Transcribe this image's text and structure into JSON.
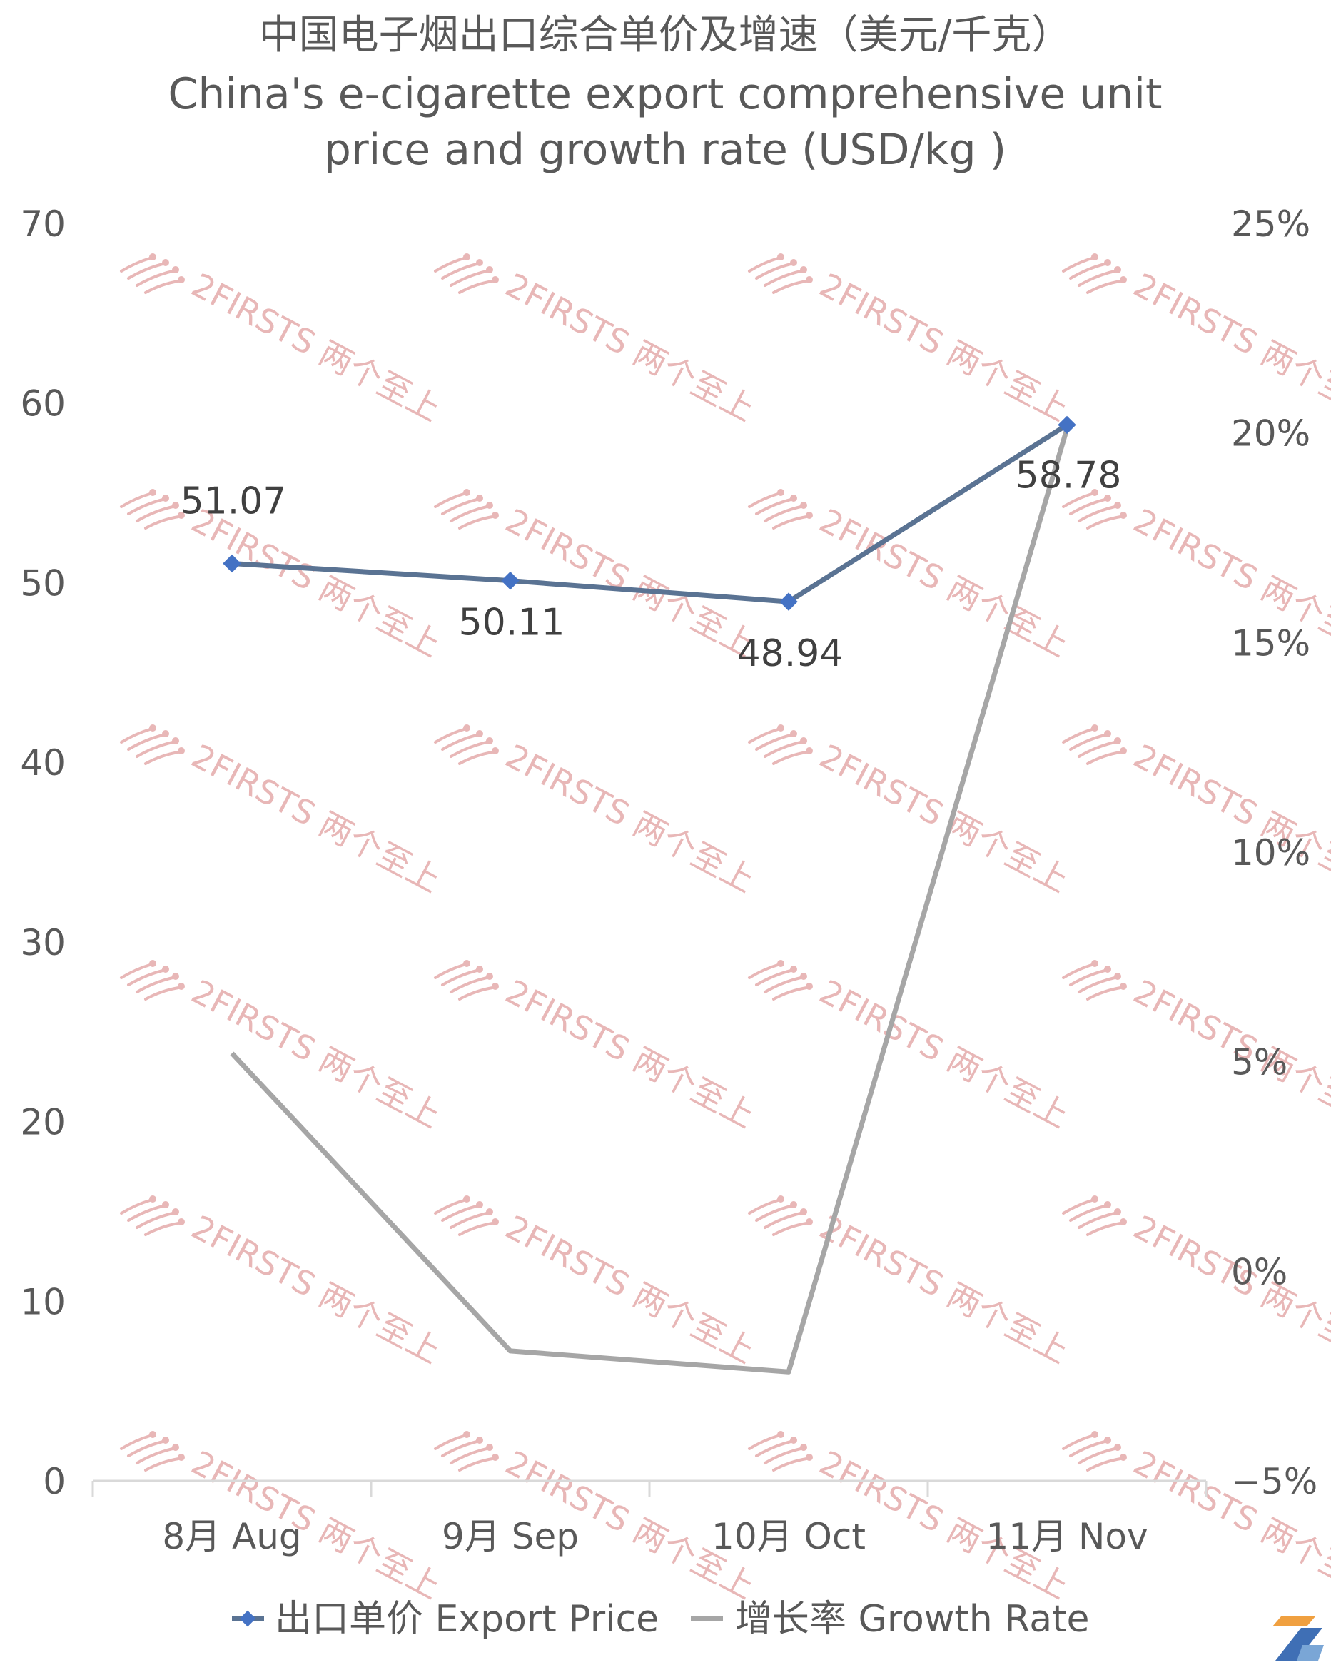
{
  "chart_data": {
    "type": "line",
    "title_lines": [
      "中国电子烟出口综合单价及增速（美元/千克）",
      "China's e-cigarette export comprehensive unit",
      "price and growth rate (USD/kg )"
    ],
    "categories": [
      "8月 Aug",
      "9月 Sep",
      "10月 Oct",
      "11月 Nov"
    ],
    "series": [
      {
        "name": "出口单价 Export Price",
        "axis": "left",
        "color": "#5a7393",
        "marker_color": "#4472c4",
        "values": [
          51.07,
          50.11,
          48.94,
          58.78
        ],
        "labels": [
          "51.07",
          "50.11",
          "48.94",
          "58.78"
        ]
      },
      {
        "name": "增长率 Growth Rate",
        "axis": "right",
        "color": "#a6a6a6",
        "values": [
          5.2,
          -1.9,
          -2.4,
          20.1
        ]
      }
    ],
    "y_left": {
      "min": 0,
      "max": 70,
      "ticks": [
        "0",
        "10",
        "20",
        "30",
        "40",
        "50",
        "60",
        "70"
      ]
    },
    "y_right": {
      "min": -5,
      "max": 25,
      "ticks": [
        "-5%",
        "0%",
        "5%",
        "10%",
        "15%",
        "20%",
        "25%"
      ]
    },
    "legend_position": "bottom",
    "grid": false,
    "watermark": "2FIRSTS 两个至上"
  }
}
